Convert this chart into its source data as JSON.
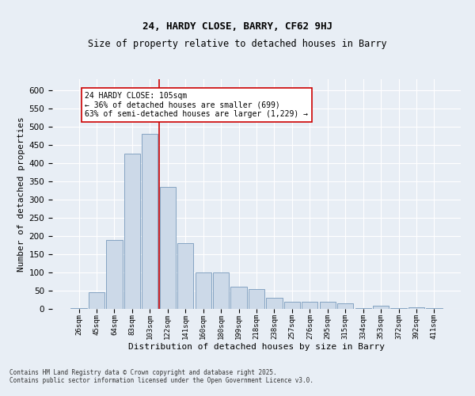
{
  "title1": "24, HARDY CLOSE, BARRY, CF62 9HJ",
  "title2": "Size of property relative to detached houses in Barry",
  "xlabel": "Distribution of detached houses by size in Barry",
  "ylabel": "Number of detached properties",
  "bar_color": "#ccd9e8",
  "bar_edge_color": "#7799bb",
  "background_color": "#e8eef5",
  "categories": [
    "26sqm",
    "45sqm",
    "64sqm",
    "83sqm",
    "103sqm",
    "122sqm",
    "141sqm",
    "160sqm",
    "180sqm",
    "199sqm",
    "218sqm",
    "238sqm",
    "257sqm",
    "276sqm",
    "295sqm",
    "315sqm",
    "334sqm",
    "353sqm",
    "372sqm",
    "392sqm",
    "411sqm"
  ],
  "values": [
    3,
    45,
    190,
    425,
    480,
    335,
    180,
    100,
    100,
    60,
    55,
    30,
    20,
    20,
    20,
    15,
    3,
    8,
    3,
    5,
    2
  ],
  "red_line_x": 4.5,
  "annotation_text": "24 HARDY CLOSE: 105sqm\n← 36% of detached houses are smaller (699)\n63% of semi-detached houses are larger (1,229) →",
  "annotation_box_color": "#ffffff",
  "annotation_box_edge": "#cc0000",
  "red_line_color": "#cc0000",
  "footer": "Contains HM Land Registry data © Crown copyright and database right 2025.\nContains public sector information licensed under the Open Government Licence v3.0.",
  "ylim": [
    0,
    630
  ],
  "yticks": [
    0,
    50,
    100,
    150,
    200,
    250,
    300,
    350,
    400,
    450,
    500,
    550,
    600
  ]
}
